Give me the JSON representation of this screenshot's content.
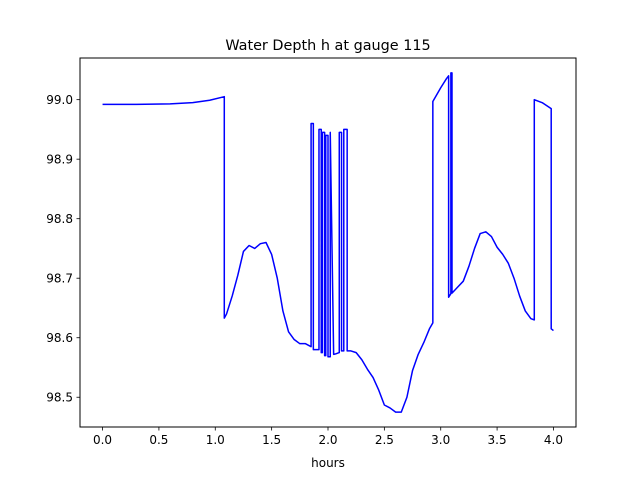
{
  "chart_data": {
    "type": "line",
    "title": "Water Depth h at gauge 115",
    "xlabel": "hours",
    "ylabel": "",
    "xlim": [
      -0.2,
      4.2
    ],
    "ylim": [
      98.45,
      99.07
    ],
    "xticks": [
      0.0,
      0.5,
      1.0,
      1.5,
      2.0,
      2.5,
      3.0,
      3.5,
      4.0
    ],
    "xtick_labels": [
      "0.0",
      "0.5",
      "1.0",
      "1.5",
      "2.0",
      "2.5",
      "3.0",
      "3.5",
      "4.0"
    ],
    "yticks": [
      98.5,
      98.6,
      98.7,
      98.8,
      98.9,
      99.0
    ],
    "ytick_labels": [
      "98.5",
      "98.6",
      "98.7",
      "98.8",
      "98.9",
      "99.0"
    ],
    "grid": false,
    "legend": "none",
    "series": [
      {
        "color": "#0000ff",
        "x": [
          0.0,
          0.3,
          0.6,
          0.8,
          0.95,
          1.08,
          1.08,
          1.1,
          1.15,
          1.2,
          1.25,
          1.3,
          1.35,
          1.4,
          1.45,
          1.5,
          1.55,
          1.6,
          1.65,
          1.7,
          1.75,
          1.8,
          1.85,
          1.85,
          1.87,
          1.87,
          1.92,
          1.92,
          1.94,
          1.94,
          1.95,
          1.95,
          1.97,
          1.97,
          1.98,
          1.98,
          2.0,
          2.0,
          2.02,
          2.02,
          2.05,
          2.07,
          2.1,
          2.1,
          2.12,
          2.12,
          2.14,
          2.14,
          2.17,
          2.17,
          2.2,
          2.25,
          2.3,
          2.35,
          2.4,
          2.45,
          2.5,
          2.55,
          2.6,
          2.65,
          2.7,
          2.75,
          2.8,
          2.85,
          2.9,
          2.93,
          2.93,
          3.0,
          3.05,
          3.07,
          3.07,
          3.09,
          3.09,
          3.1,
          3.1,
          3.15,
          3.2,
          3.25,
          3.3,
          3.35,
          3.4,
          3.45,
          3.5,
          3.55,
          3.6,
          3.65,
          3.7,
          3.75,
          3.8,
          3.83,
          3.83,
          3.9,
          3.98,
          3.98,
          4.0
        ],
        "y": [
          98.992,
          98.992,
          98.993,
          98.995,
          98.999,
          99.005,
          98.633,
          98.64,
          98.67,
          98.705,
          98.745,
          98.755,
          98.75,
          98.758,
          98.76,
          98.74,
          98.7,
          98.645,
          98.61,
          98.597,
          98.59,
          98.59,
          98.585,
          98.96,
          98.96,
          98.58,
          98.58,
          98.95,
          98.95,
          98.575,
          98.575,
          98.945,
          98.945,
          98.57,
          98.57,
          98.94,
          98.94,
          98.568,
          98.568,
          98.945,
          98.572,
          98.573,
          98.575,
          98.945,
          98.945,
          98.578,
          98.578,
          98.95,
          98.95,
          98.578,
          98.578,
          98.575,
          98.563,
          98.547,
          98.533,
          98.512,
          98.487,
          98.482,
          98.475,
          98.475,
          98.5,
          98.545,
          98.572,
          98.592,
          98.615,
          98.625,
          98.997,
          99.02,
          99.035,
          99.04,
          98.668,
          98.674,
          99.045,
          99.045,
          98.675,
          98.685,
          98.695,
          98.72,
          98.75,
          98.775,
          98.778,
          98.77,
          98.752,
          98.74,
          98.725,
          98.7,
          98.67,
          98.645,
          98.632,
          98.63,
          99.0,
          98.995,
          98.985,
          98.615,
          98.612
        ]
      }
    ]
  }
}
